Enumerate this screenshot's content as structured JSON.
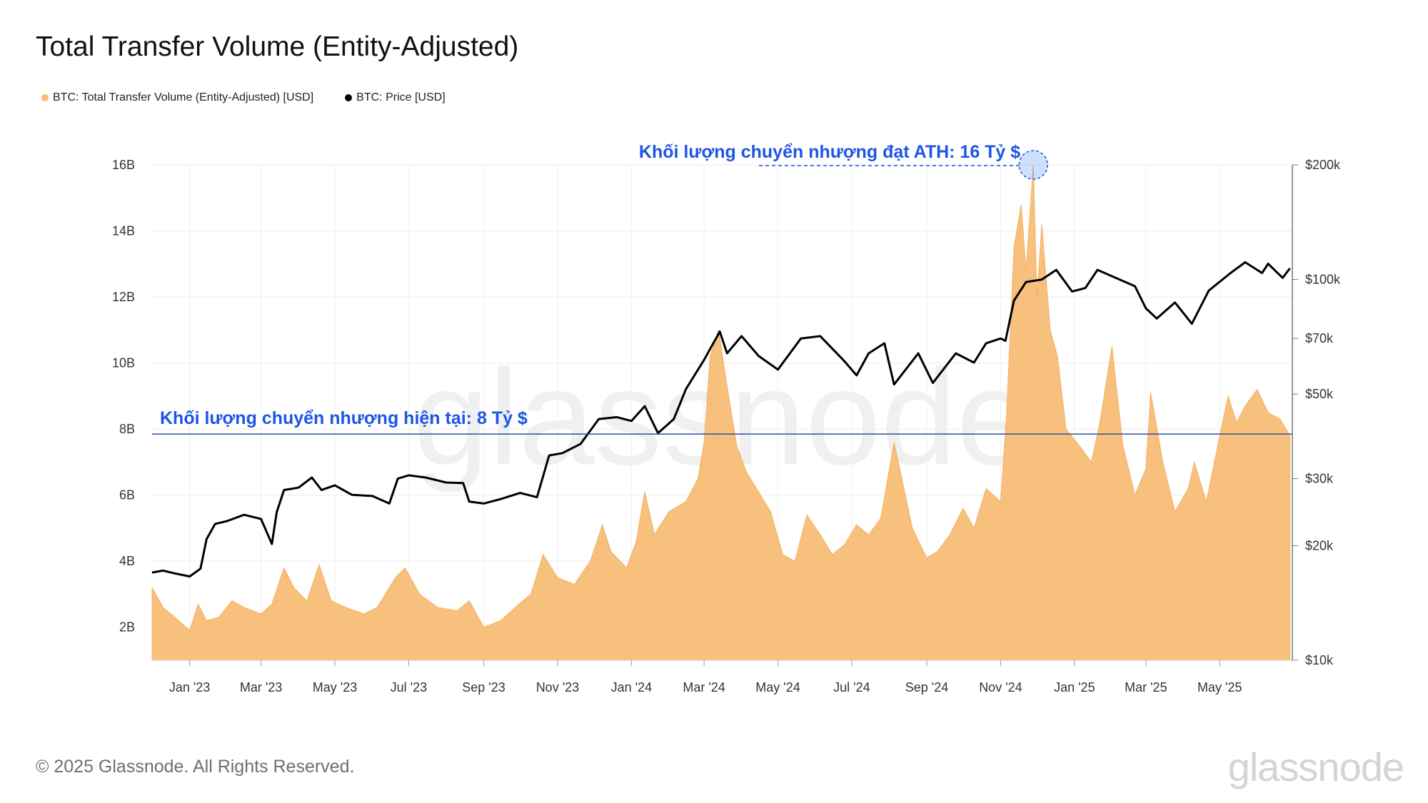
{
  "header": {
    "title": "Total Transfer Volume (Entity-Adjusted)"
  },
  "legend": [
    {
      "label": "BTC: Total Transfer Volume (Entity-Adjusted) [USD]",
      "color": "#f8bd77"
    },
    {
      "label": "BTC: Price [USD]",
      "color": "#000000"
    }
  ],
  "footer": {
    "copyright": "© 2025 Glassnode. All Rights Reserved.",
    "brand": "glassnode"
  },
  "watermark": "glassnode",
  "chart_data": {
    "type": "area",
    "title": "Total Transfer Volume (Entity-Adjusted)",
    "x_range": [
      "2022-12-01",
      "2025-06-30"
    ],
    "x_ticks": [
      {
        "label": "Jan '23",
        "date": "2023-01-01"
      },
      {
        "label": "Mar '23",
        "date": "2023-03-01"
      },
      {
        "label": "May '23",
        "date": "2023-05-01"
      },
      {
        "label": "Jul '23",
        "date": "2023-07-01"
      },
      {
        "label": "Sep '23",
        "date": "2023-09-01"
      },
      {
        "label": "Nov '23",
        "date": "2023-11-01"
      },
      {
        "label": "Jan '24",
        "date": "2024-01-01"
      },
      {
        "label": "Mar '24",
        "date": "2024-03-01"
      },
      {
        "label": "May '24",
        "date": "2024-05-01"
      },
      {
        "label": "Jul '24",
        "date": "2024-07-01"
      },
      {
        "label": "Sep '24",
        "date": "2024-09-01"
      },
      {
        "label": "Nov '24",
        "date": "2024-11-01"
      },
      {
        "label": "Jan '25",
        "date": "2025-01-01"
      },
      {
        "label": "Mar '25",
        "date": "2025-03-01"
      },
      {
        "label": "May '25",
        "date": "2025-05-01"
      }
    ],
    "y_left": {
      "range": [
        1,
        16
      ],
      "unit": "B USD",
      "ticks": [
        {
          "label": "2B",
          "value": 2
        },
        {
          "label": "4B",
          "value": 4
        },
        {
          "label": "6B",
          "value": 6
        },
        {
          "label": "8B",
          "value": 8
        },
        {
          "label": "10B",
          "value": 10
        },
        {
          "label": "12B",
          "value": 12
        },
        {
          "label": "14B",
          "value": 14
        },
        {
          "label": "16B",
          "value": 16
        }
      ]
    },
    "y_right": {
      "scale": "log",
      "range": [
        10000,
        200000
      ],
      "ticks": [
        {
          "label": "$10k",
          "value": 10000
        },
        {
          "label": "$20k",
          "value": 20000
        },
        {
          "label": "$30k",
          "value": 30000
        },
        {
          "label": "$50k",
          "value": 50000
        },
        {
          "label": "$70k",
          "value": 70000
        },
        {
          "label": "$100k",
          "value": 100000
        },
        {
          "label": "$200k",
          "value": 200000
        }
      ]
    },
    "grid": true,
    "legend_position": "top-left",
    "series": [
      {
        "name": "BTC: Total Transfer Volume (Entity-Adjusted) [USD]",
        "axis": "left",
        "color": "#f8bd77",
        "points": [
          [
            "2022-12-01",
            3.2
          ],
          [
            "2022-12-10",
            2.6
          ],
          [
            "2022-12-20",
            2.3
          ],
          [
            "2023-01-01",
            1.9
          ],
          [
            "2023-01-08",
            2.7
          ],
          [
            "2023-01-15",
            2.2
          ],
          [
            "2023-01-25",
            2.3
          ],
          [
            "2023-02-05",
            2.8
          ],
          [
            "2023-02-15",
            2.6
          ],
          [
            "2023-03-01",
            2.4
          ],
          [
            "2023-03-10",
            2.7
          ],
          [
            "2023-03-20",
            3.8
          ],
          [
            "2023-03-28",
            3.2
          ],
          [
            "2023-04-08",
            2.8
          ],
          [
            "2023-04-18",
            3.9
          ],
          [
            "2023-04-28",
            2.8
          ],
          [
            "2023-05-10",
            2.6
          ],
          [
            "2023-05-25",
            2.4
          ],
          [
            "2023-06-05",
            2.6
          ],
          [
            "2023-06-20",
            3.5
          ],
          [
            "2023-06-28",
            3.8
          ],
          [
            "2023-07-10",
            3.0
          ],
          [
            "2023-07-25",
            2.6
          ],
          [
            "2023-08-10",
            2.5
          ],
          [
            "2023-08-20",
            2.8
          ],
          [
            "2023-09-01",
            2.0
          ],
          [
            "2023-09-15",
            2.2
          ],
          [
            "2023-09-30",
            2.7
          ],
          [
            "2023-10-10",
            3.0
          ],
          [
            "2023-10-20",
            4.2
          ],
          [
            "2023-11-01",
            3.5
          ],
          [
            "2023-11-15",
            3.3
          ],
          [
            "2023-11-28",
            4.0
          ],
          [
            "2023-12-08",
            5.1
          ],
          [
            "2023-12-15",
            4.3
          ],
          [
            "2023-12-28",
            3.8
          ],
          [
            "2024-01-05",
            4.6
          ],
          [
            "2024-01-12",
            6.1
          ],
          [
            "2024-01-20",
            4.8
          ],
          [
            "2024-02-01",
            5.5
          ],
          [
            "2024-02-15",
            5.8
          ],
          [
            "2024-02-25",
            6.5
          ],
          [
            "2024-03-01",
            7.6
          ],
          [
            "2024-03-06",
            10.2
          ],
          [
            "2024-03-13",
            11.0
          ],
          [
            "2024-03-20",
            9.3
          ],
          [
            "2024-03-28",
            7.5
          ],
          [
            "2024-04-05",
            6.7
          ],
          [
            "2024-04-15",
            6.1
          ],
          [
            "2024-04-25",
            5.5
          ],
          [
            "2024-05-05",
            4.2
          ],
          [
            "2024-05-15",
            4.0
          ],
          [
            "2024-05-25",
            5.4
          ],
          [
            "2024-06-05",
            4.8
          ],
          [
            "2024-06-15",
            4.2
          ],
          [
            "2024-06-25",
            4.5
          ],
          [
            "2024-07-05",
            5.1
          ],
          [
            "2024-07-15",
            4.8
          ],
          [
            "2024-07-25",
            5.3
          ],
          [
            "2024-08-05",
            7.6
          ],
          [
            "2024-08-12",
            6.4
          ],
          [
            "2024-08-20",
            5.0
          ],
          [
            "2024-09-01",
            4.1
          ],
          [
            "2024-09-10",
            4.3
          ],
          [
            "2024-09-20",
            4.8
          ],
          [
            "2024-10-01",
            5.6
          ],
          [
            "2024-10-10",
            5.0
          ],
          [
            "2024-10-20",
            6.2
          ],
          [
            "2024-11-01",
            5.8
          ],
          [
            "2024-11-06",
            8.5
          ],
          [
            "2024-11-12",
            13.5
          ],
          [
            "2024-11-18",
            14.8
          ],
          [
            "2024-11-22",
            12.8
          ],
          [
            "2024-11-28",
            16.0
          ],
          [
            "2024-12-01",
            12.0
          ],
          [
            "2024-12-05",
            14.2
          ],
          [
            "2024-12-12",
            11.0
          ],
          [
            "2024-12-18",
            10.2
          ],
          [
            "2024-12-25",
            8.0
          ],
          [
            "2025-01-05",
            7.5
          ],
          [
            "2025-01-15",
            7.0
          ],
          [
            "2025-01-22",
            8.2
          ],
          [
            "2025-02-01",
            10.5
          ],
          [
            "2025-02-10",
            7.5
          ],
          [
            "2025-02-20",
            6.0
          ],
          [
            "2025-03-01",
            6.8
          ],
          [
            "2025-03-05",
            9.1
          ],
          [
            "2025-03-15",
            7.0
          ],
          [
            "2025-03-25",
            5.5
          ],
          [
            "2025-04-05",
            6.2
          ],
          [
            "2025-04-10",
            7.0
          ],
          [
            "2025-04-20",
            5.8
          ],
          [
            "2025-05-01",
            7.8
          ],
          [
            "2025-05-08",
            9.0
          ],
          [
            "2025-05-15",
            8.2
          ],
          [
            "2025-05-22",
            8.7
          ],
          [
            "2025-06-01",
            9.2
          ],
          [
            "2025-06-10",
            8.5
          ],
          [
            "2025-06-20",
            8.3
          ],
          [
            "2025-06-28",
            7.8
          ]
        ]
      },
      {
        "name": "BTC: Price [USD]",
        "axis": "right",
        "color": "#000000",
        "points": [
          [
            "2022-12-01",
            17000
          ],
          [
            "2022-12-10",
            17200
          ],
          [
            "2022-12-20",
            16900
          ],
          [
            "2023-01-01",
            16600
          ],
          [
            "2023-01-10",
            17400
          ],
          [
            "2023-01-15",
            20800
          ],
          [
            "2023-01-22",
            22800
          ],
          [
            "2023-02-01",
            23200
          ],
          [
            "2023-02-15",
            24100
          ],
          [
            "2023-03-01",
            23500
          ],
          [
            "2023-03-10",
            20200
          ],
          [
            "2023-03-14",
            24500
          ],
          [
            "2023-03-20",
            28000
          ],
          [
            "2023-04-01",
            28400
          ],
          [
            "2023-04-12",
            30200
          ],
          [
            "2023-04-20",
            28000
          ],
          [
            "2023-05-01",
            28800
          ],
          [
            "2023-05-15",
            27200
          ],
          [
            "2023-06-01",
            27000
          ],
          [
            "2023-06-15",
            25800
          ],
          [
            "2023-06-22",
            30000
          ],
          [
            "2023-07-01",
            30600
          ],
          [
            "2023-07-15",
            30200
          ],
          [
            "2023-08-01",
            29300
          ],
          [
            "2023-08-15",
            29200
          ],
          [
            "2023-08-20",
            26100
          ],
          [
            "2023-09-01",
            25800
          ],
          [
            "2023-09-15",
            26500
          ],
          [
            "2023-10-01",
            27500
          ],
          [
            "2023-10-15",
            26800
          ],
          [
            "2023-10-25",
            34500
          ],
          [
            "2023-11-05",
            35000
          ],
          [
            "2023-11-20",
            37000
          ],
          [
            "2023-12-05",
            43000
          ],
          [
            "2023-12-20",
            43500
          ],
          [
            "2024-01-01",
            42500
          ],
          [
            "2024-01-12",
            46500
          ],
          [
            "2024-01-23",
            39500
          ],
          [
            "2024-02-05",
            43000
          ],
          [
            "2024-02-15",
            51500
          ],
          [
            "2024-03-01",
            61500
          ],
          [
            "2024-03-14",
            73000
          ],
          [
            "2024-03-20",
            64000
          ],
          [
            "2024-04-01",
            71000
          ],
          [
            "2024-04-15",
            63000
          ],
          [
            "2024-05-01",
            58000
          ],
          [
            "2024-05-20",
            70000
          ],
          [
            "2024-06-05",
            71000
          ],
          [
            "2024-06-25",
            61000
          ],
          [
            "2024-07-05",
            56000
          ],
          [
            "2024-07-15",
            64000
          ],
          [
            "2024-07-28",
            68000
          ],
          [
            "2024-08-05",
            53000
          ],
          [
            "2024-08-25",
            64000
          ],
          [
            "2024-09-06",
            53500
          ],
          [
            "2024-09-25",
            64000
          ],
          [
            "2024-10-10",
            60500
          ],
          [
            "2024-10-20",
            68000
          ],
          [
            "2024-11-01",
            70000
          ],
          [
            "2024-11-05",
            69000
          ],
          [
            "2024-11-12",
            88000
          ],
          [
            "2024-11-22",
            98500
          ],
          [
            "2024-12-05",
            100000
          ],
          [
            "2024-12-17",
            106000
          ],
          [
            "2024-12-30",
            93000
          ],
          [
            "2025-01-10",
            95000
          ],
          [
            "2025-01-20",
            106000
          ],
          [
            "2025-02-01",
            102000
          ],
          [
            "2025-02-20",
            96000
          ],
          [
            "2025-03-01",
            84000
          ],
          [
            "2025-03-10",
            79000
          ],
          [
            "2025-03-25",
            87000
          ],
          [
            "2025-04-08",
            76500
          ],
          [
            "2025-04-22",
            93500
          ],
          [
            "2025-05-10",
            104000
          ],
          [
            "2025-05-22",
            111000
          ],
          [
            "2025-06-05",
            104000
          ],
          [
            "2025-06-10",
            110000
          ],
          [
            "2025-06-22",
            101000
          ],
          [
            "2025-06-28",
            107000
          ]
        ]
      }
    ],
    "annotations": [
      {
        "text": "Khối lượng chuyển nhượng đạt ATH: 16 Tỷ $",
        "date": "2024-11-28",
        "value": 16
      },
      {
        "text": "Khối lượng chuyển nhượng hiện tại: 8 Tỷ $",
        "value": 7.85
      }
    ]
  }
}
